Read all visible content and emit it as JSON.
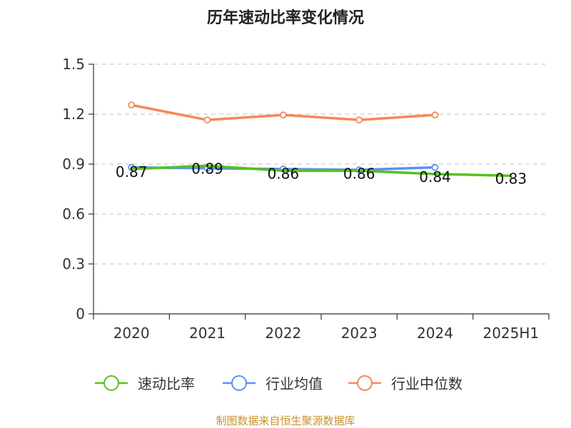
{
  "chart_data": {
    "type": "line",
    "title": "历年速动比率变化情况",
    "categories": [
      "2020",
      "2021",
      "2022",
      "2023",
      "2024",
      "2025H1"
    ],
    "ylim": [
      0,
      1.5
    ],
    "yticks": [
      "0",
      "0.3",
      "0.6",
      "0.9",
      "1.2",
      "1.5"
    ],
    "grid": true,
    "legend_position": "bottom",
    "series": [
      {
        "name": "速动比率",
        "color": "#52c41a",
        "values": [
          0.87,
          0.89,
          0.86,
          0.86,
          0.84,
          0.83
        ],
        "labels": [
          "0.87",
          "0.89",
          "0.86",
          "0.86",
          "0.84",
          "0.83"
        ]
      },
      {
        "name": "行业均值",
        "color": "#5b8ff9",
        "values": [
          0.88,
          0.875,
          0.87,
          0.865,
          0.88,
          null
        ]
      },
      {
        "name": "行业中位数",
        "color": "#f6875a",
        "values": [
          1.255,
          1.165,
          1.195,
          1.165,
          1.195,
          null
        ]
      }
    ]
  },
  "source": "制图数据来自恒生聚源数据库"
}
